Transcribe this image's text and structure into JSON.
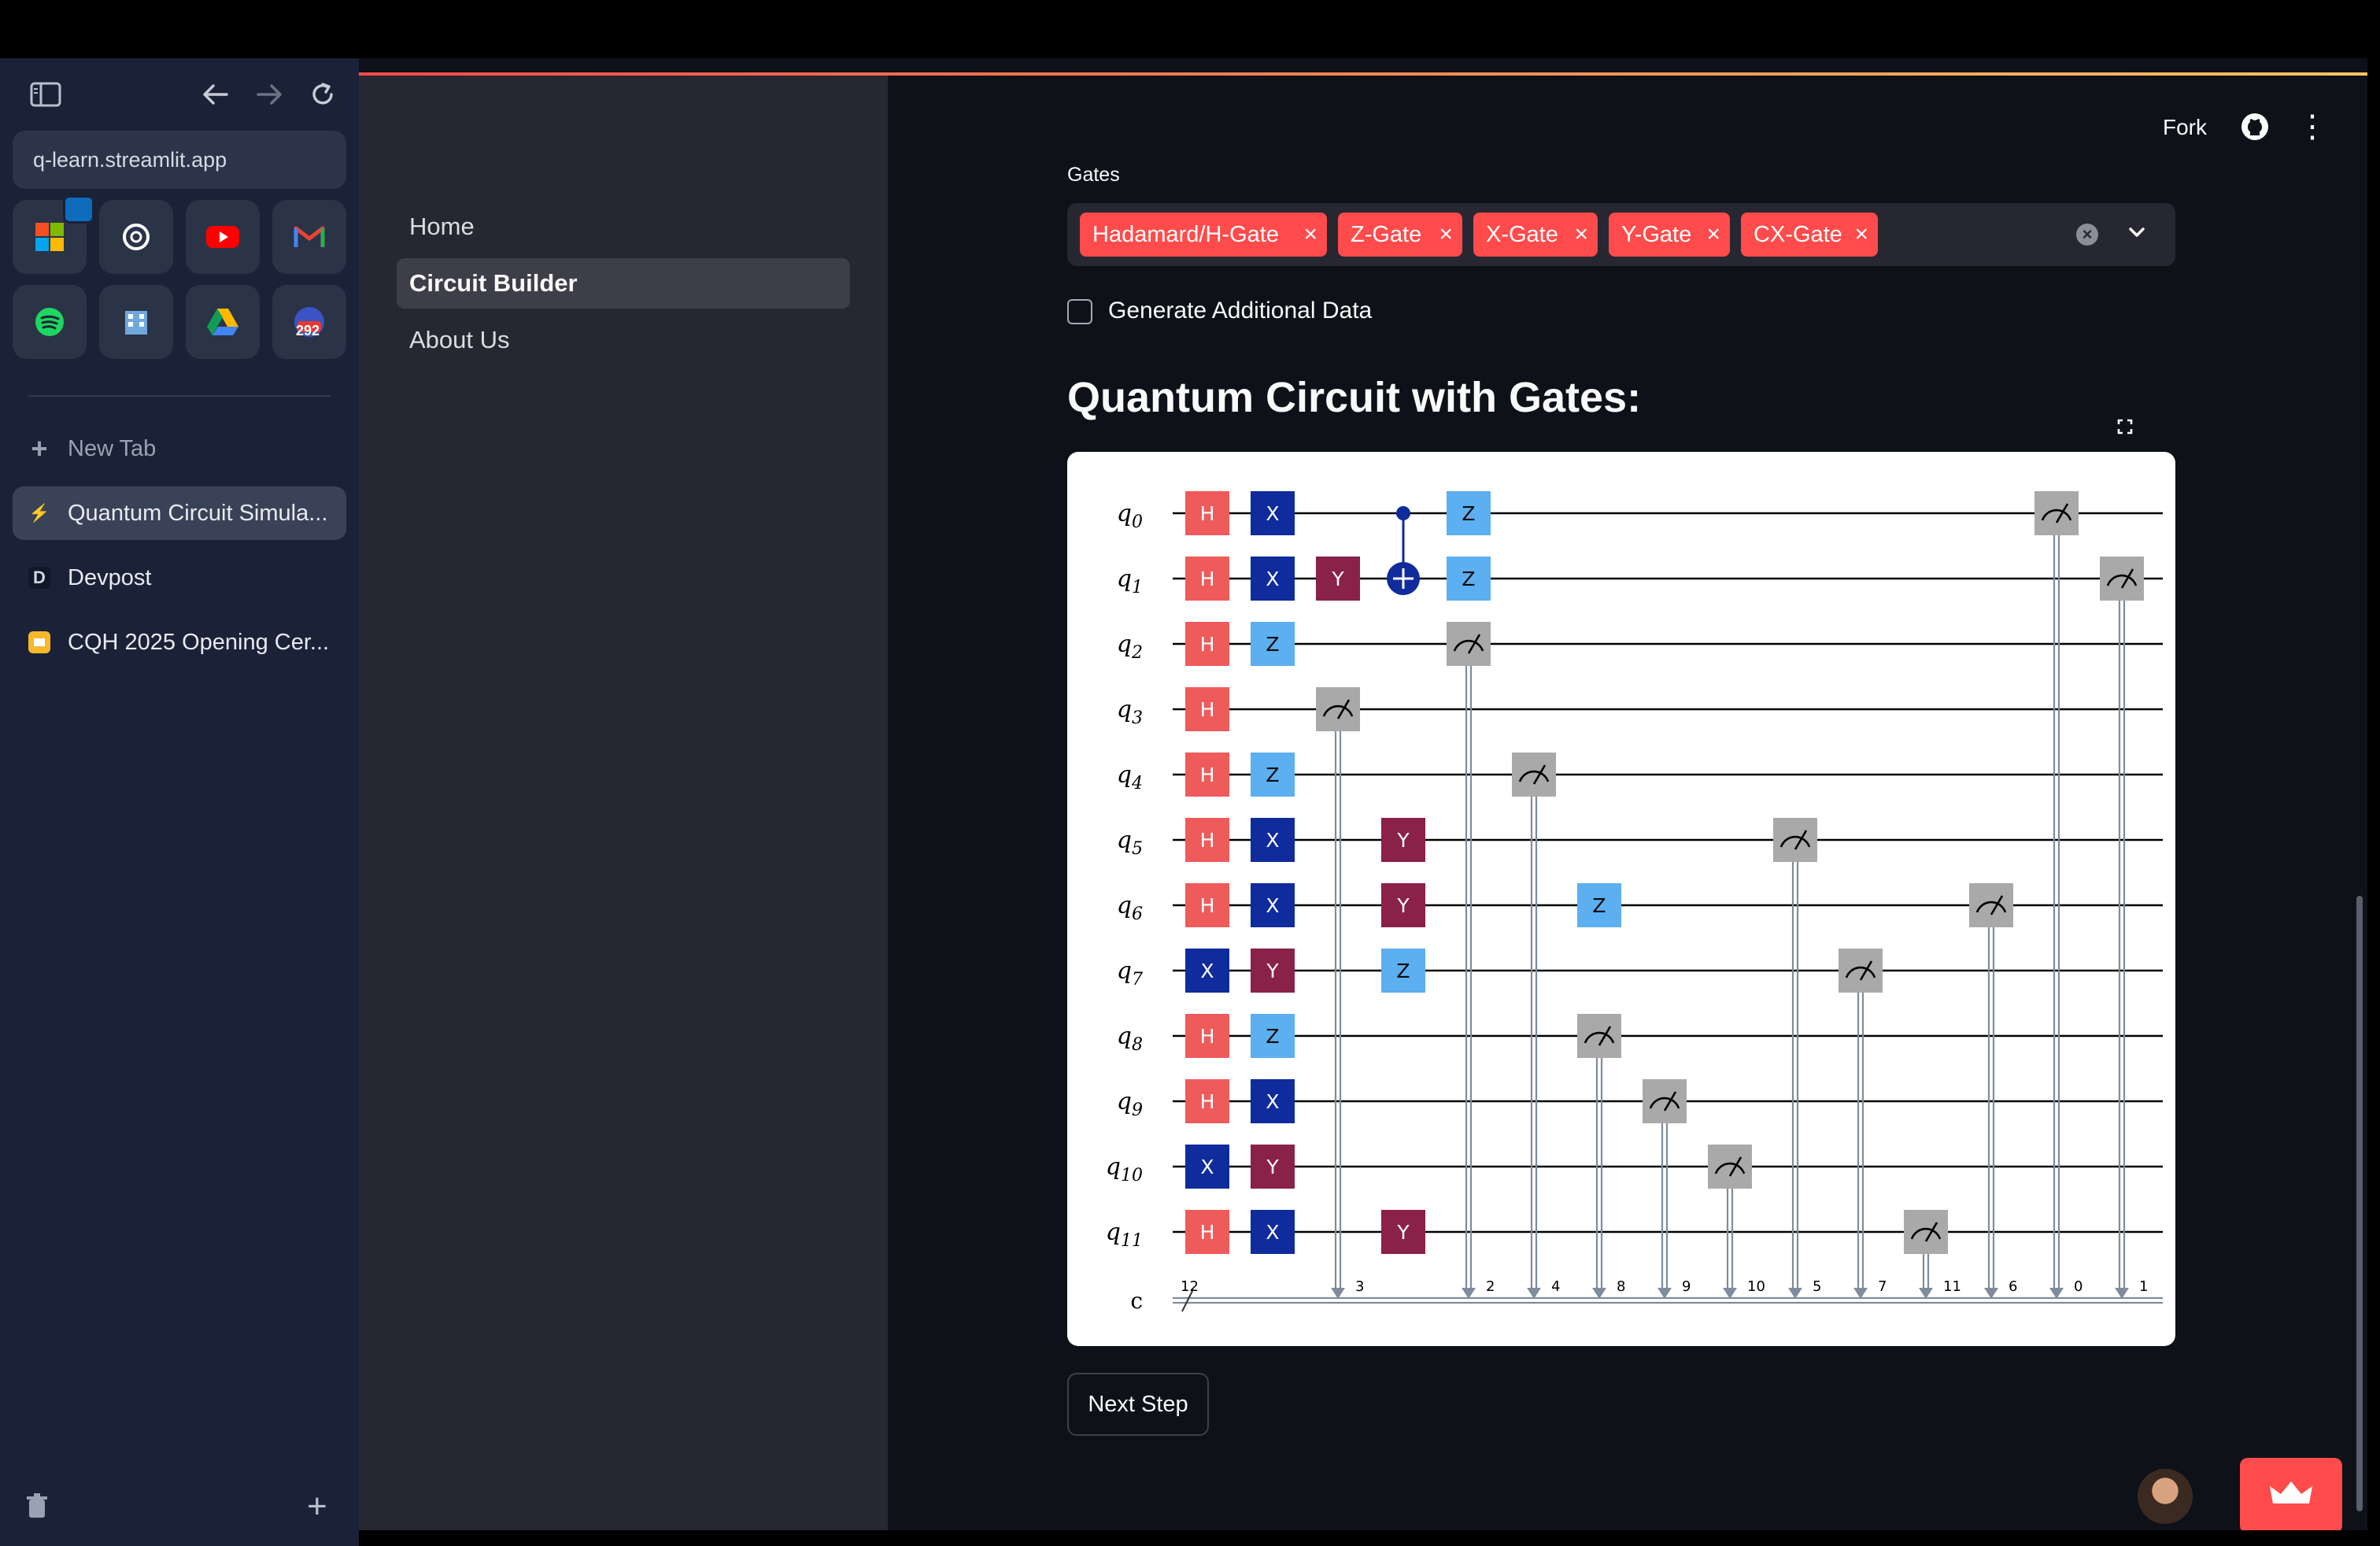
{
  "browser": {
    "url": "q-learn.streamlit.app",
    "favorites": [
      {
        "icon": "microsoft-outlook-icon",
        "badge": "outlook"
      },
      {
        "icon": "openai-icon"
      },
      {
        "icon": "youtube-icon"
      },
      {
        "icon": "gmail-icon"
      },
      {
        "icon": "spotify-icon"
      },
      {
        "icon": "building-icon"
      },
      {
        "icon": "google-drive-icon"
      },
      {
        "icon": "calendar-badge-icon",
        "badge": "292"
      }
    ],
    "new_tab_label": "New Tab",
    "tabs": [
      {
        "label": "Quantum Circuit Simula...",
        "icon": "lightning-icon",
        "active": true
      },
      {
        "label": "Devpost",
        "icon": "devpost-icon",
        "glyph": "D"
      },
      {
        "label": "CQH 2025 Opening Cer...",
        "icon": "slides-icon"
      }
    ]
  },
  "nav": {
    "items": [
      {
        "label": "Home",
        "active": false
      },
      {
        "label": "Circuit Builder",
        "active": true
      },
      {
        "label": "About Us",
        "active": false
      }
    ]
  },
  "header": {
    "fork_label": "Fork"
  },
  "gates": {
    "label": "Gates",
    "selected": [
      "Hadamard/H-Gate",
      "Z-Gate",
      "X-Gate",
      "Y-Gate",
      "CX-Gate"
    ],
    "chip_color": "#ff4b4b"
  },
  "options": {
    "generate_additional_data": "Generate Additional Data",
    "checked": false
  },
  "heading": "Quantum Circuit with Gates:",
  "next_button": "Next Step",
  "circuit": {
    "num_qubits": 12,
    "classical_label": "c",
    "classical_size": "12",
    "gate_colors": {
      "H": "#ef5b5b",
      "X": "#0f2b9c",
      "Y": "#8a2149",
      "Z": "#5caff0",
      "M": "#a9a9a9",
      "CX": "#0f2b9c"
    },
    "gates": [
      {
        "col": 0,
        "q": 0,
        "g": "H"
      },
      {
        "col": 0,
        "q": 1,
        "g": "H"
      },
      {
        "col": 0,
        "q": 2,
        "g": "H"
      },
      {
        "col": 0,
        "q": 3,
        "g": "H"
      },
      {
        "col": 0,
        "q": 4,
        "g": "H"
      },
      {
        "col": 0,
        "q": 5,
        "g": "H"
      },
      {
        "col": 0,
        "q": 6,
        "g": "H"
      },
      {
        "col": 0,
        "q": 7,
        "g": "X"
      },
      {
        "col": 0,
        "q": 8,
        "g": "H"
      },
      {
        "col": 0,
        "q": 9,
        "g": "H"
      },
      {
        "col": 0,
        "q": 10,
        "g": "X"
      },
      {
        "col": 0,
        "q": 11,
        "g": "H"
      },
      {
        "col": 1,
        "q": 0,
        "g": "X"
      },
      {
        "col": 1,
        "q": 1,
        "g": "X"
      },
      {
        "col": 1,
        "q": 2,
        "g": "Z"
      },
      {
        "col": 1,
        "q": 4,
        "g": "Z"
      },
      {
        "col": 1,
        "q": 5,
        "g": "X"
      },
      {
        "col": 1,
        "q": 6,
        "g": "X"
      },
      {
        "col": 1,
        "q": 7,
        "g": "Y"
      },
      {
        "col": 1,
        "q": 8,
        "g": "Z"
      },
      {
        "col": 1,
        "q": 9,
        "g": "X"
      },
      {
        "col": 1,
        "q": 10,
        "g": "Y"
      },
      {
        "col": 1,
        "q": 11,
        "g": "X"
      },
      {
        "col": 2,
        "q": 1,
        "g": "Y"
      },
      {
        "col": 3,
        "q": 5,
        "g": "Y"
      },
      {
        "col": 3,
        "q": 6,
        "g": "Y"
      },
      {
        "col": 3,
        "q": 7,
        "g": "Z"
      },
      {
        "col": 3,
        "q": 11,
        "g": "Y"
      },
      {
        "col": 4,
        "q": 0,
        "g": "Z"
      },
      {
        "col": 4,
        "q": 1,
        "g": "Z"
      },
      {
        "col": 6,
        "q": 6,
        "g": "Z"
      }
    ],
    "cx": [
      {
        "col": 3,
        "control": 0,
        "target": 1
      }
    ],
    "measures": [
      {
        "col": 2,
        "q": 3,
        "bit": "3"
      },
      {
        "col": 4,
        "q": 2,
        "bit": "2"
      },
      {
        "col": 5,
        "q": 4,
        "bit": "4"
      },
      {
        "col": 6,
        "q": 8,
        "bit": "8"
      },
      {
        "col": 7,
        "q": 9,
        "bit": "9"
      },
      {
        "col": 8,
        "q": 10,
        "bit": "10"
      },
      {
        "col": 9,
        "q": 5,
        "bit": "5"
      },
      {
        "col": 10,
        "q": 7,
        "bit": "7"
      },
      {
        "col": 11,
        "q": 11,
        "bit": "11"
      },
      {
        "col": 12,
        "q": 6,
        "bit": "6"
      },
      {
        "col": 13,
        "q": 0,
        "bit": "0"
      },
      {
        "col": 14,
        "q": 1,
        "bit": "1"
      }
    ]
  }
}
